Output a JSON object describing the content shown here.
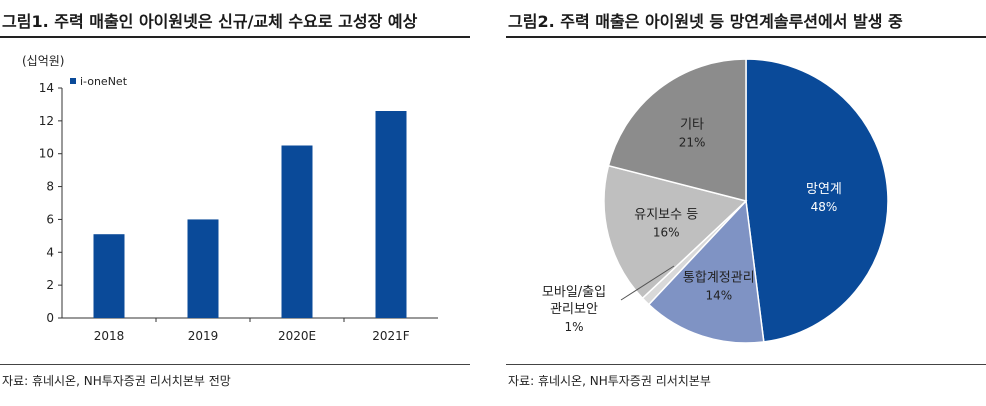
{
  "colors": {
    "bar": "#0a4a99",
    "pie_main": "#0a4a99",
    "pie_integration": "#7f93c4",
    "pie_mobile": "#d9d9d9",
    "pie_maintenance": "#bfbfbf",
    "pie_other": "#8c8c8c"
  },
  "left": {
    "title": "그림1. 주력 매출인 아이원넷은 신규/교체 수요로 고성장 예상",
    "source": "자료: 휴네시온, NH투자증권 리서치본부 전망"
  },
  "right": {
    "title": "그림2. 주력 매출은 아이원넷 등 망연계솔루션에서 발생 중",
    "source": "자료: 휴네시온, NH투자증권 리서치본부"
  },
  "chart_data": [
    {
      "type": "bar",
      "ylabel": "(십억원)",
      "ylim": [
        0,
        14
      ],
      "yticks": [
        "0",
        "2",
        "4",
        "6",
        "8",
        "10",
        "12",
        "14"
      ],
      "categories": [
        "2018",
        "2019",
        "2020E",
        "2021F"
      ],
      "series": [
        {
          "name": "i-oneNet",
          "values": [
            5.1,
            6.0,
            10.5,
            12.6
          ]
        }
      ],
      "grid": false,
      "legend": "top-left"
    },
    {
      "type": "pie",
      "slices": [
        {
          "label": "망연계",
          "value": 48,
          "pct_label": "48%",
          "color_key": "pie_main"
        },
        {
          "label": "통합계정관리",
          "value": 14,
          "pct_label": "14%",
          "color_key": "pie_integration"
        },
        {
          "label": "모바일/출입 관리보안",
          "label_lines": [
            "모바일/출입",
            "관리보안"
          ],
          "value": 1,
          "pct_label": "1%",
          "color_key": "pie_mobile"
        },
        {
          "label": "유지보수 등",
          "value": 16,
          "pct_label": "16%",
          "color_key": "pie_maintenance"
        },
        {
          "label": "기타",
          "value": 21,
          "pct_label": "21%",
          "color_key": "pie_other"
        }
      ]
    }
  ]
}
